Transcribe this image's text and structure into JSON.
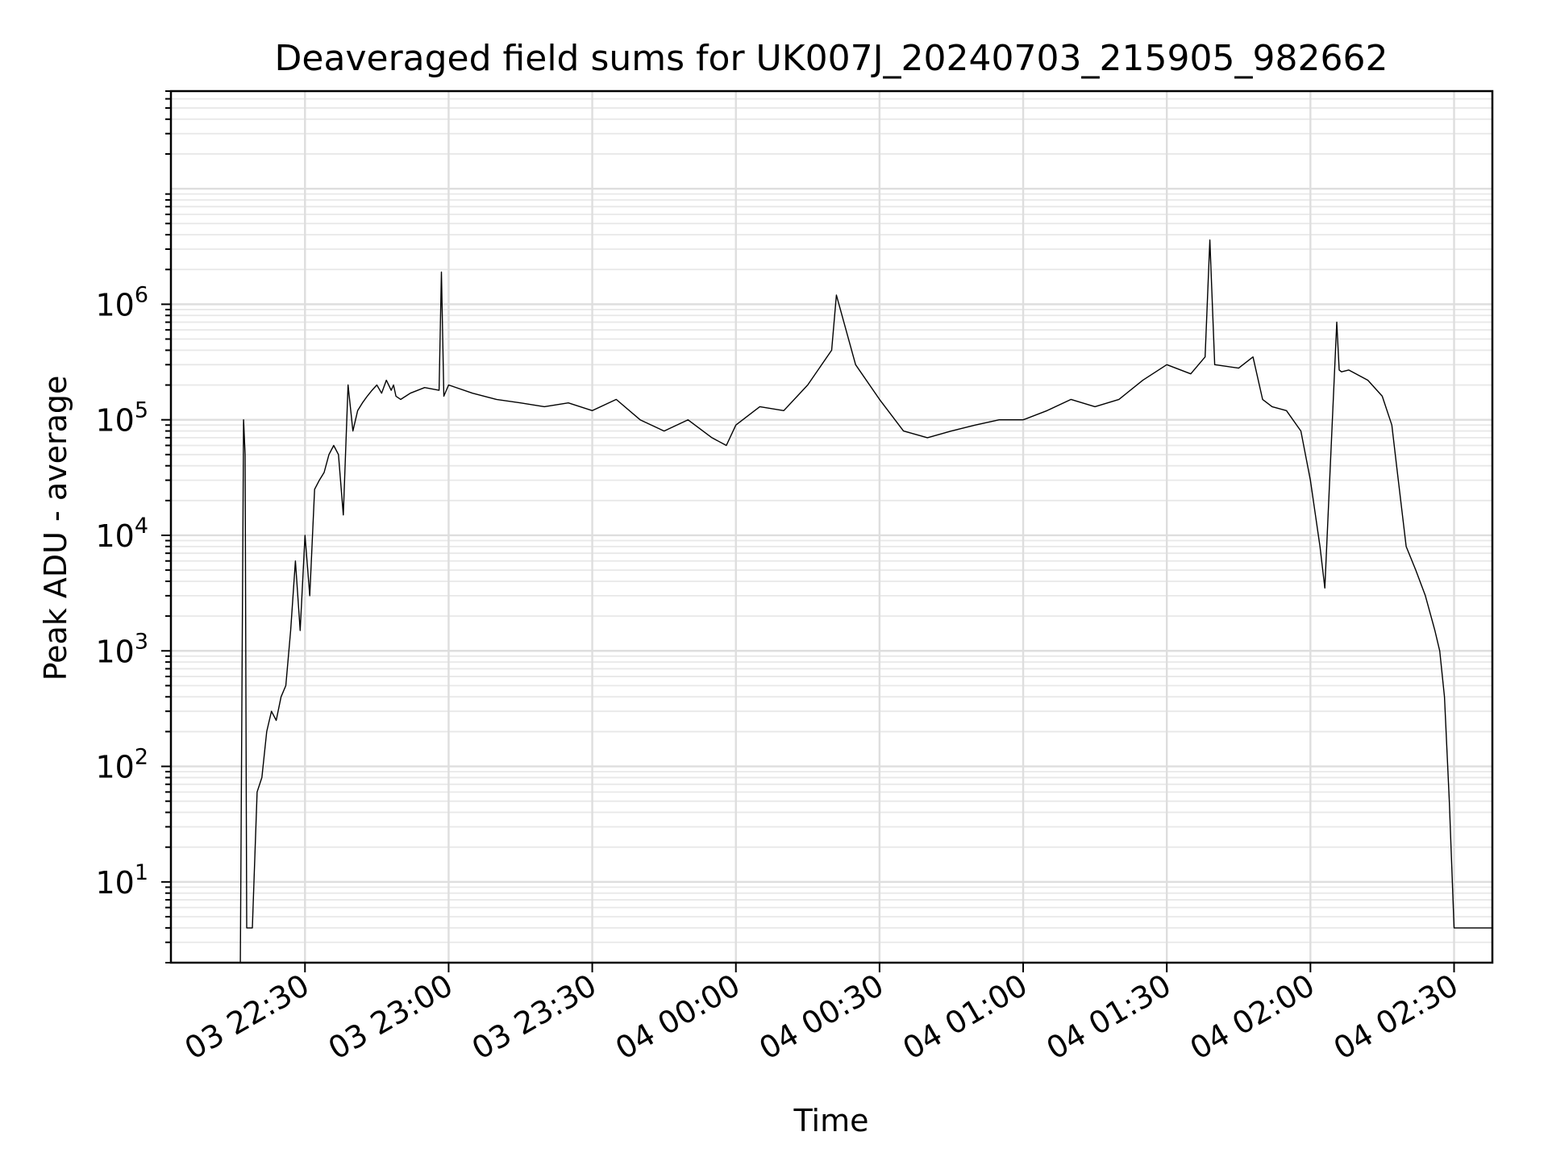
{
  "chart_data": {
    "type": "line",
    "title": "Deaveraged field sums for UK007J_20240703_215905_982662",
    "xlabel": "Time",
    "ylabel": "Peak ADU - average",
    "yscale": "log",
    "ylim": [
      2,
      70000000
    ],
    "xlim": [
      "03 22:02",
      "04 02:38"
    ],
    "grid": true,
    "line_color": "#000000",
    "x_ticks": [
      {
        "t": "03 22:30",
        "label": "03 22:30"
      },
      {
        "t": "03 23:00",
        "label": "03 23:00"
      },
      {
        "t": "03 23:30",
        "label": "03 23:30"
      },
      {
        "t": "04 00:00",
        "label": "04 00:00"
      },
      {
        "t": "04 00:30",
        "label": "04 00:30"
      },
      {
        "t": "04 01:00",
        "label": "04 01:00"
      },
      {
        "t": "04 01:30",
        "label": "04 01:30"
      },
      {
        "t": "04 02:00",
        "label": "04 02:00"
      },
      {
        "t": "04 02:30",
        "label": "04 02:30"
      }
    ],
    "y_ticks": [
      {
        "value": 10,
        "base": "10",
        "exp": "1"
      },
      {
        "value": 100,
        "base": "10",
        "exp": "2"
      },
      {
        "value": 1000,
        "base": "10",
        "exp": "3"
      },
      {
        "value": 10000,
        "base": "10",
        "exp": "4"
      },
      {
        "value": 100000,
        "base": "10",
        "exp": "5"
      },
      {
        "value": 1000000,
        "base": "10",
        "exp": "6"
      }
    ],
    "series": [
      {
        "x": [
          "03 22:16:30",
          "03 22:17:10",
          "03 22:17:30",
          "03 22:17:50",
          "03 22:18:10",
          "03 22:18:30",
          "03 22:19:00",
          "03 22:20:00",
          "03 22:21:00",
          "03 22:22:00",
          "03 22:23:00",
          "03 22:24:00",
          "03 22:25:00",
          "03 22:26:00",
          "03 22:27:00",
          "03 22:28:00",
          "03 22:29:00",
          "03 22:30:00",
          "03 22:31:00",
          "03 22:32:00",
          "03 22:33:00",
          "03 22:34:00",
          "03 22:35:00",
          "03 22:36:00",
          "03 22:37:00",
          "03 22:38:00",
          "03 22:39:00",
          "03 22:40:00",
          "03 22:41:00",
          "03 22:42:00",
          "03 22:43:00",
          "03 22:44:00",
          "03 22:45:00",
          "03 22:46:00",
          "03 22:47:00",
          "03 22:48:00",
          "03 22:48:30",
          "03 22:49:00",
          "03 22:50:00",
          "03 22:52:00",
          "03 22:55:00",
          "03 22:58:00",
          "03 22:58:30",
          "03 22:59:00",
          "03 23:00:00",
          "03 23:05:00",
          "03 23:10:00",
          "03 23:15:00",
          "03 23:20:00",
          "03 23:25:00",
          "03 23:30:00",
          "03 23:35:00",
          "03 23:40:00",
          "03 23:45:00",
          "03 23:50:00",
          "03 23:55:00",
          "03 23:58:00",
          "04 00:00:00",
          "04 00:05:00",
          "04 00:10:00",
          "04 00:15:00",
          "04 00:20:00",
          "04 00:21:00",
          "04 00:25:00",
          "04 00:30:00",
          "04 00:35:00",
          "04 00:40:00",
          "04 00:45:00",
          "04 00:50:00",
          "04 00:55:00",
          "04 01:00:00",
          "04 01:05:00",
          "04 01:10:00",
          "04 01:15:00",
          "04 01:20:00",
          "04 01:25:00",
          "04 01:30:00",
          "04 01:35:00",
          "04 01:38:00",
          "04 01:39:00",
          "04 01:40:00",
          "04 01:45:00",
          "04 01:48:00",
          "04 01:50:00",
          "04 01:52:00",
          "04 01:55:00",
          "04 01:58:00",
          "04 02:00:00",
          "04 02:02:00",
          "04 02:03:00",
          "04 02:05:30",
          "04 02:06:00",
          "04 02:06:30",
          "04 02:08:00",
          "04 02:12:00",
          "04 02:15:00",
          "04 02:17:00",
          "04 02:18:00",
          "04 02:20:00",
          "04 02:22:00",
          "04 02:24:00",
          "04 02:26:00",
          "04 02:27:00",
          "04 02:28:00",
          "04 02:29:00",
          "04 02:30:00",
          "04 02:31:00",
          "04 02:31:30",
          "04 02:32:00",
          "04 02:33:00",
          "04 02:34:00",
          "04 02:35:00",
          "04 02:36:00",
          "04 02:37:00",
          "04 02:38:00"
        ],
        "y": [
          2,
          100000,
          50000,
          4,
          4,
          4,
          4,
          60,
          80,
          200,
          300,
          250,
          400,
          500,
          1500,
          6000,
          1500,
          10000,
          3000,
          25000,
          30000,
          35000,
          50000,
          60000,
          50000,
          15000,
          200000,
          80000,
          120000,
          140000,
          160000,
          180000,
          200000,
          170000,
          220000,
          180000,
          200000,
          160000,
          150000,
          170000,
          190000,
          180000,
          1900000,
          160000,
          200000,
          170000,
          150000,
          140000,
          130000,
          140000,
          120000,
          150000,
          100000,
          80000,
          100000,
          70000,
          60000,
          90000,
          130000,
          120000,
          200000,
          400000,
          1200000,
          300000,
          150000,
          80000,
          70000,
          80000,
          90000,
          100000,
          100000,
          120000,
          150000,
          130000,
          150000,
          220000,
          300000,
          250000,
          350000,
          3600000,
          300000,
          280000,
          350000,
          150000,
          130000,
          120000,
          80000,
          30000,
          8000,
          3500,
          700000,
          270000,
          260000,
          270000,
          220000,
          160000,
          90000,
          40000,
          8000,
          5000,
          3000,
          1500,
          1000,
          400,
          50,
          4,
          4,
          4,
          4,
          4,
          4,
          4,
          4,
          4,
          4
        ]
      }
    ]
  }
}
